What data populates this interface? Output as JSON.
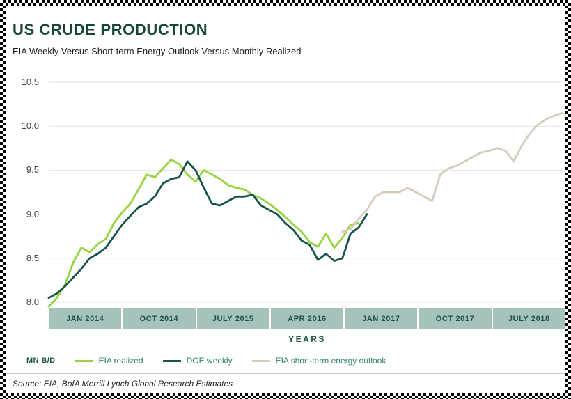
{
  "header": {
    "title": "US CRUDE PRODUCTION",
    "subtitle": "EIA Weekly Versus Short-term Energy Outlook Versus Monthly Realized"
  },
  "footer": {
    "source": "Source: EIA, BofA Merrill Lynch Global Research Estimates"
  },
  "colors": {
    "title": "#17473a",
    "axis_text": "#1e5147",
    "axis_strip": "#a5c3ba",
    "gridline": "#e3e3e3",
    "ytick_text": "#3a4744",
    "legend_text": "#2f8270"
  },
  "chart_data": {
    "type": "line",
    "title": "US CRUDE PRODUCTION",
    "subtitle": "EIA Weekly Versus Short-term Energy Outlook Versus Monthly Realized",
    "ylabel": "MN B/D",
    "xlabel": "YEARS",
    "ylim": [
      7.9,
      10.65
    ],
    "yticks": [
      8.0,
      8.5,
      9.0,
      9.5,
      10.0,
      10.5
    ],
    "grid": "horizontal-only",
    "legend_position": "bottom",
    "x_tick_labels": [
      "JAN 2014",
      "OCT 2014",
      "JULY 2015",
      "APR 2016",
      "JAN 2017",
      "OCT 2017",
      "JULY 2018"
    ],
    "x_axis_range_months": "Oct 2013 to Jan 2019, monthly",
    "months_total": 63,
    "series": [
      {
        "name": "EIA realized",
        "color": "#97d23f",
        "start_month": 0,
        "values": [
          7.95,
          8.05,
          8.2,
          8.45,
          8.62,
          8.57,
          8.66,
          8.72,
          8.9,
          9.02,
          9.12,
          9.28,
          9.45,
          9.42,
          9.52,
          9.62,
          9.57,
          9.45,
          9.37,
          9.5,
          9.45,
          9.4,
          9.33,
          9.3,
          9.28,
          9.22,
          9.18,
          9.12,
          9.05,
          8.97,
          8.88,
          8.8,
          8.68,
          8.63,
          8.78,
          8.62,
          8.73,
          8.88,
          8.9
        ]
      },
      {
        "name": "DOE weekly",
        "color": "#15534b",
        "start_month": 0,
        "values": [
          8.05,
          8.1,
          8.18,
          8.28,
          8.38,
          8.5,
          8.55,
          8.62,
          8.75,
          8.88,
          8.98,
          9.08,
          9.12,
          9.2,
          9.35,
          9.4,
          9.42,
          9.6,
          9.5,
          9.3,
          9.12,
          9.1,
          9.15,
          9.2,
          9.2,
          9.22,
          9.1,
          9.05,
          9.0,
          8.9,
          8.82,
          8.7,
          8.65,
          8.48,
          8.55,
          8.47,
          8.5,
          8.78,
          8.85,
          9.0
        ]
      },
      {
        "name": "EIA short-term energy outlook",
        "color": "#d4ccba",
        "start_month": 36,
        "values": [
          8.8,
          8.83,
          8.95,
          9.05,
          9.2,
          9.25,
          9.25,
          9.25,
          9.3,
          9.25,
          9.2,
          9.15,
          9.45,
          9.52,
          9.55,
          9.6,
          9.65,
          9.7,
          9.72,
          9.75,
          9.72,
          9.6,
          9.78,
          9.92,
          10.02,
          10.08,
          10.12,
          10.15
        ]
      }
    ]
  }
}
